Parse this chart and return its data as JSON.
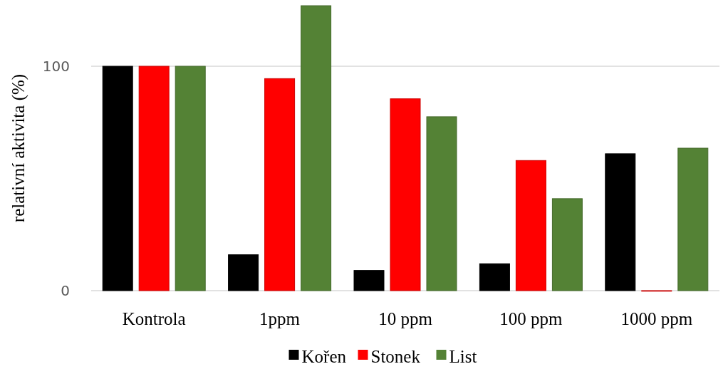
{
  "chart_data": {
    "type": "bar",
    "ylabel": "relativní aktivita (%)",
    "categories": [
      "Kontrola",
      "1ppm",
      "10 ppm",
      "100 ppm",
      "1000 ppm"
    ],
    "series": [
      {
        "name": "Kořen",
        "color": "#000000",
        "values": [
          100,
          16,
          9,
          12,
          61
        ]
      },
      {
        "name": "Stonek",
        "color": "#ff0000",
        "values": [
          100,
          94.5,
          85.5,
          58,
          0
        ]
      },
      {
        "name": "List",
        "color": "#548235",
        "values": [
          100,
          127,
          77.5,
          41,
          63.5
        ]
      }
    ],
    "ylim": [
      0,
      127
    ],
    "yticks": [
      0,
      100
    ],
    "grid": "y",
    "legend": "bottom"
  }
}
